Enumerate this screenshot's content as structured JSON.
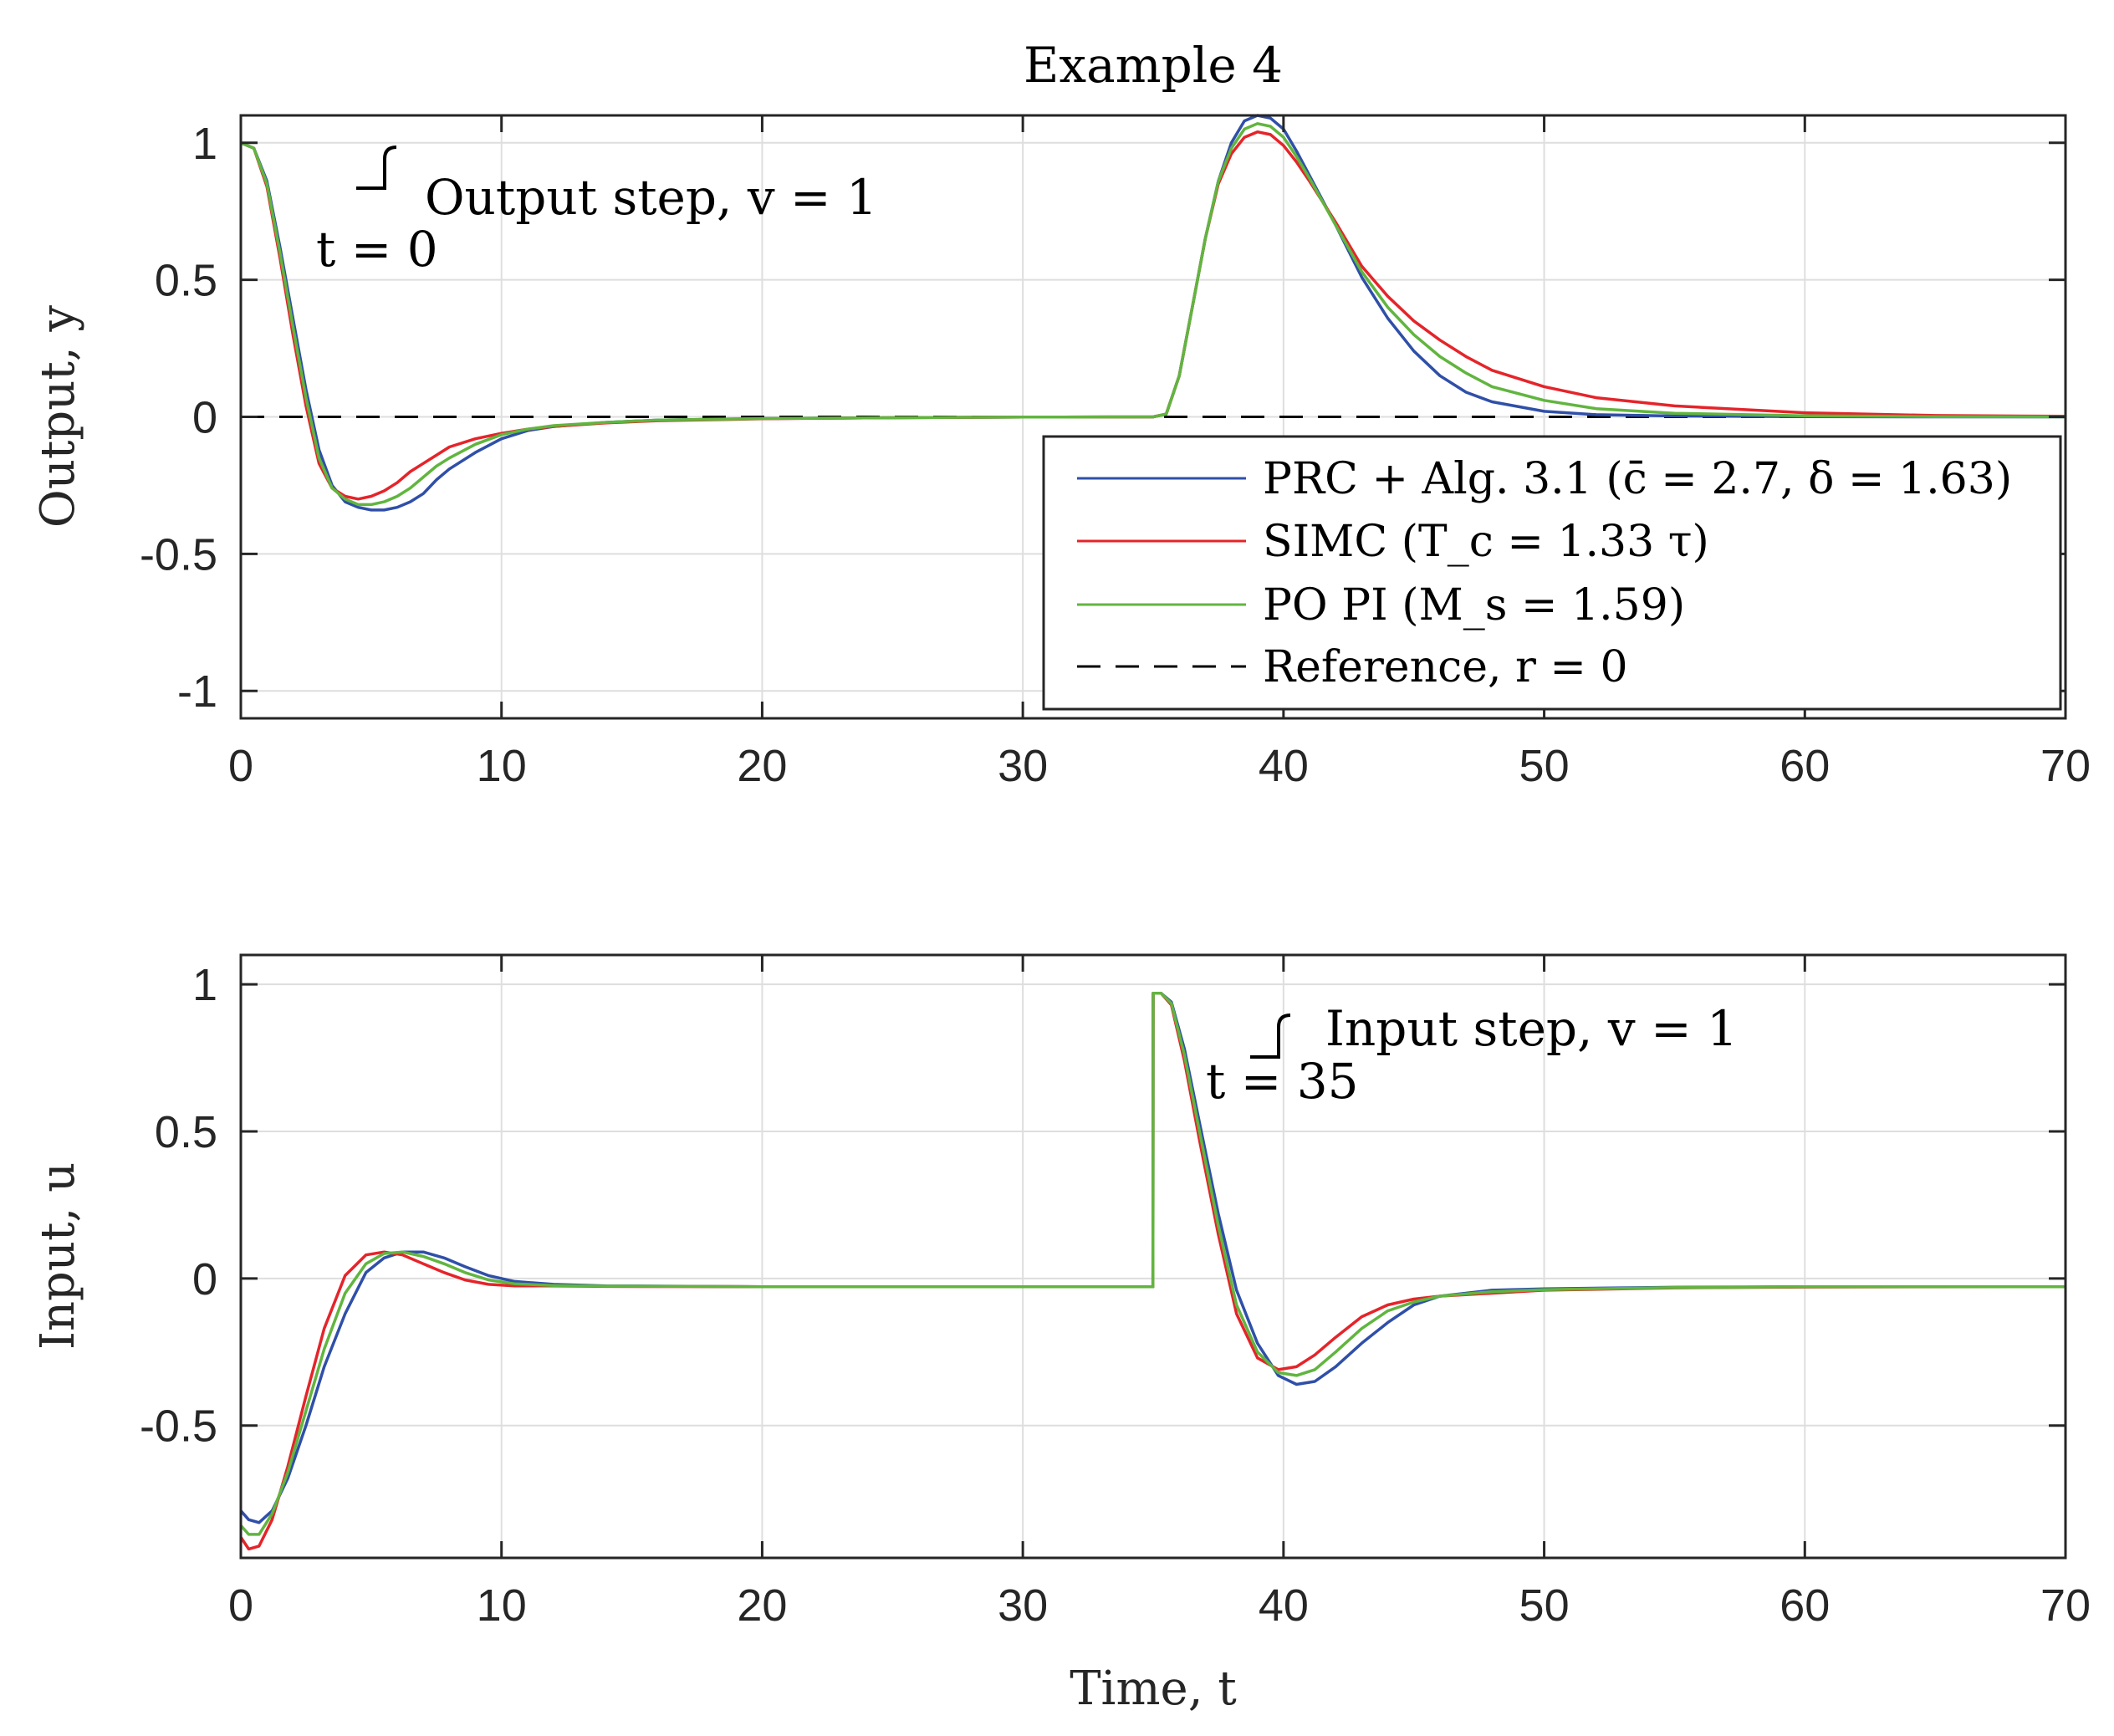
{
  "chart_data": [
    {
      "type": "line",
      "title": "Example 4",
      "xlabel": "",
      "ylabel": "Output, y",
      "xlim": [
        0,
        70
      ],
      "ylim": [
        -1.1,
        1.1
      ],
      "xticks": [
        "0",
        "10",
        "20",
        "30",
        "40",
        "50",
        "60",
        "70"
      ],
      "yticks": [
        "1",
        "0.5",
        "0",
        "-0.5",
        "-1"
      ],
      "grid": true,
      "annotation": {
        "line1": "Output step, v = 1",
        "line2": "t = 0"
      },
      "legend": {
        "position": "bottom-right",
        "entries": [
          "PRC + Alg. 3.1 (c̄ = 2.7, δ = 1.63)",
          "SIMC (T_c = 1.33 τ)",
          "PO PI (M_s = 1.59)",
          "Reference, r = 0"
        ]
      },
      "series": [
        {
          "name": "PRC + Alg. 3.1",
          "color": "#2f4fa8",
          "x": [
            0,
            0.5,
            1,
            1.5,
            2,
            2.5,
            3,
            3.5,
            4,
            4.5,
            5,
            5.5,
            6,
            6.5,
            7,
            7.5,
            8,
            9,
            10,
            11,
            12,
            14,
            16,
            20,
            25,
            30,
            35,
            35.5,
            36,
            36.5,
            37,
            37.5,
            38,
            38.5,
            39,
            39.5,
            40,
            40.5,
            41,
            42,
            43,
            44,
            45,
            46,
            47,
            48,
            50,
            52,
            55,
            60,
            65,
            70
          ],
          "y": [
            1,
            0.98,
            0.86,
            0.62,
            0.36,
            0.1,
            -0.12,
            -0.25,
            -0.31,
            -0.33,
            -0.34,
            -0.34,
            -0.33,
            -0.31,
            -0.28,
            -0.23,
            -0.19,
            -0.13,
            -0.08,
            -0.05,
            -0.035,
            -0.02,
            -0.012,
            -0.006,
            -0.003,
            -0.001,
            0,
            0.01,
            0.15,
            0.4,
            0.65,
            0.86,
            1.0,
            1.08,
            1.1,
            1.09,
            1.05,
            0.97,
            0.88,
            0.7,
            0.51,
            0.36,
            0.24,
            0.15,
            0.09,
            0.055,
            0.02,
            0.008,
            0.003,
            0.001,
            0,
            0
          ]
        },
        {
          "name": "SIMC",
          "color": "#e5242a",
          "x": [
            0,
            0.5,
            1,
            1.5,
            2,
            2.5,
            3,
            3.5,
            4,
            4.5,
            5,
            5.5,
            6,
            6.5,
            7,
            7.5,
            8,
            9,
            10,
            11,
            12,
            14,
            16,
            20,
            25,
            30,
            35,
            35.5,
            36,
            36.5,
            37,
            37.5,
            38,
            38.5,
            39,
            39.5,
            40,
            40.5,
            41,
            42,
            43,
            44,
            45,
            46,
            47,
            48,
            50,
            52,
            55,
            60,
            65,
            70
          ],
          "y": [
            1,
            0.98,
            0.84,
            0.58,
            0.3,
            0.04,
            -0.17,
            -0.26,
            -0.29,
            -0.3,
            -0.29,
            -0.27,
            -0.24,
            -0.2,
            -0.17,
            -0.14,
            -0.11,
            -0.08,
            -0.06,
            -0.045,
            -0.035,
            -0.022,
            -0.014,
            -0.007,
            -0.003,
            -0.001,
            0,
            0.01,
            0.15,
            0.4,
            0.65,
            0.85,
            0.96,
            1.02,
            1.04,
            1.03,
            0.99,
            0.93,
            0.86,
            0.71,
            0.55,
            0.44,
            0.35,
            0.28,
            0.22,
            0.17,
            0.11,
            0.07,
            0.04,
            0.015,
            0.005,
            0.002
          ]
        },
        {
          "name": "PO PI",
          "color": "#61b53f",
          "x": [
            0,
            0.5,
            1,
            1.5,
            2,
            2.5,
            3,
            3.5,
            4,
            4.5,
            5,
            5.5,
            6,
            6.5,
            7,
            7.5,
            8,
            9,
            10,
            11,
            12,
            14,
            16,
            20,
            25,
            30,
            35,
            35.5,
            36,
            36.5,
            37,
            37.5,
            38,
            38.5,
            39,
            39.5,
            40,
            40.5,
            41,
            42,
            43,
            44,
            45,
            46,
            47,
            48,
            50,
            52,
            55,
            60,
            65,
            70
          ],
          "y": [
            1,
            0.98,
            0.85,
            0.6,
            0.33,
            0.07,
            -0.15,
            -0.26,
            -0.3,
            -0.32,
            -0.32,
            -0.31,
            -0.29,
            -0.26,
            -0.22,
            -0.18,
            -0.15,
            -0.1,
            -0.065,
            -0.045,
            -0.032,
            -0.02,
            -0.012,
            -0.006,
            -0.003,
            -0.001,
            0,
            0.01,
            0.15,
            0.4,
            0.65,
            0.86,
            0.98,
            1.05,
            1.07,
            1.06,
            1.02,
            0.95,
            0.87,
            0.7,
            0.53,
            0.4,
            0.3,
            0.22,
            0.16,
            0.11,
            0.06,
            0.03,
            0.013,
            0.004,
            0.001,
            0
          ]
        },
        {
          "name": "Reference, r = 0",
          "color": "#000000",
          "dash": true,
          "x": [
            0,
            70
          ],
          "y": [
            0,
            0
          ]
        }
      ]
    },
    {
      "type": "line",
      "title": "",
      "xlabel": "Time, t",
      "ylabel": "Input, u",
      "xlim": [
        0,
        70
      ],
      "ylim": [
        -0.95,
        1.1
      ],
      "xticks": [
        "0",
        "10",
        "20",
        "30",
        "40",
        "50",
        "60",
        "70"
      ],
      "yticks": [
        "1",
        "0.5",
        "0",
        "-0.5"
      ],
      "grid": true,
      "annotation": {
        "line1": "Input step, v = 1",
        "line2": "t = 35"
      },
      "series": [
        {
          "name": "PRC + Alg. 3.1",
          "color": "#2f4fa8",
          "x": [
            0,
            0.3,
            0.7,
            1.2,
            1.8,
            2.5,
            3.2,
            4,
            4.8,
            5.5,
            6.2,
            7,
            7.8,
            8.6,
            9.5,
            10.5,
            12,
            14,
            20,
            34.99,
            35,
            35.3,
            35.7,
            36.2,
            36.8,
            37.5,
            38.2,
            39,
            39.8,
            40.5,
            41.2,
            42,
            43,
            44,
            45,
            46,
            48,
            50,
            55,
            60,
            70
          ],
          "y": [
            -0.79,
            -0.82,
            -0.83,
            -0.79,
            -0.68,
            -0.5,
            -0.3,
            -0.12,
            0.02,
            0.07,
            0.09,
            0.09,
            0.07,
            0.04,
            0.01,
            -0.01,
            -0.02,
            -0.025,
            -0.028,
            -0.028,
            0.97,
            0.97,
            0.94,
            0.78,
            0.52,
            0.22,
            -0.04,
            -0.22,
            -0.33,
            -0.36,
            -0.35,
            -0.3,
            -0.22,
            -0.15,
            -0.09,
            -0.06,
            -0.04,
            -0.035,
            -0.03,
            -0.028,
            -0.028
          ]
        },
        {
          "name": "SIMC",
          "color": "#e5242a",
          "x": [
            0,
            0.3,
            0.7,
            1.2,
            1.8,
            2.5,
            3.2,
            4,
            4.8,
            5.5,
            6.2,
            7,
            7.8,
            8.6,
            9.5,
            10.5,
            12,
            14,
            20,
            34.99,
            35,
            35.3,
            35.7,
            36.2,
            36.8,
            37.5,
            38.2,
            39,
            39.8,
            40.5,
            41.2,
            42,
            43,
            44,
            45,
            46,
            48,
            50,
            55,
            60,
            70
          ],
          "y": [
            -0.88,
            -0.92,
            -0.91,
            -0.82,
            -0.64,
            -0.4,
            -0.17,
            0.01,
            0.08,
            0.09,
            0.08,
            0.05,
            0.02,
            -0.005,
            -0.02,
            -0.025,
            -0.025,
            -0.027,
            -0.028,
            -0.028,
            0.97,
            0.97,
            0.93,
            0.74,
            0.46,
            0.15,
            -0.12,
            -0.27,
            -0.31,
            -0.3,
            -0.26,
            -0.2,
            -0.13,
            -0.09,
            -0.07,
            -0.06,
            -0.05,
            -0.04,
            -0.032,
            -0.029,
            -0.028
          ]
        },
        {
          "name": "PO PI",
          "color": "#61b53f",
          "x": [
            0,
            0.3,
            0.7,
            1.2,
            1.8,
            2.5,
            3.2,
            4,
            4.8,
            5.5,
            6.2,
            7,
            7.8,
            8.6,
            9.5,
            10.5,
            12,
            14,
            20,
            34.99,
            35,
            35.3,
            35.7,
            36.2,
            36.8,
            37.5,
            38.2,
            39,
            39.8,
            40.5,
            41.2,
            42,
            43,
            44,
            45,
            46,
            48,
            50,
            55,
            60,
            70
          ],
          "y": [
            -0.84,
            -0.87,
            -0.87,
            -0.8,
            -0.66,
            -0.45,
            -0.24,
            -0.05,
            0.05,
            0.085,
            0.09,
            0.075,
            0.05,
            0.02,
            -0.005,
            -0.018,
            -0.024,
            -0.026,
            -0.028,
            -0.028,
            0.97,
            0.97,
            0.935,
            0.76,
            0.49,
            0.18,
            -0.09,
            -0.25,
            -0.32,
            -0.33,
            -0.31,
            -0.25,
            -0.17,
            -0.11,
            -0.08,
            -0.06,
            -0.045,
            -0.038,
            -0.031,
            -0.028,
            -0.028
          ]
        }
      ]
    }
  ]
}
